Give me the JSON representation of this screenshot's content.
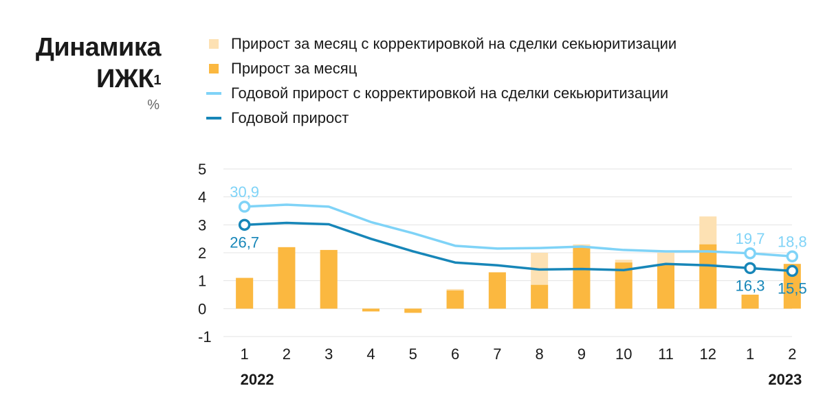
{
  "title_line1": "Динамика",
  "title_line2": "ИЖК",
  "title_sup": "1",
  "unit": "%",
  "legend": [
    {
      "label": "Прирост за месяц с корректировкой на сделки секьюритизации",
      "kind": "box",
      "color": "#fde1b3"
    },
    {
      "label": "Прирост за месяц",
      "kind": "box",
      "color": "#fbb840"
    },
    {
      "label": "Годовой прирост с корректировкой на сделки секьюритизации",
      "kind": "line",
      "color": "#7fd3f7"
    },
    {
      "label": "Годовой прирост",
      "kind": "line",
      "color": "#1786b8"
    }
  ],
  "chart_data": {
    "type": "bar",
    "categories": [
      "1",
      "2",
      "3",
      "4",
      "5",
      "6",
      "7",
      "8",
      "9",
      "10",
      "11",
      "12",
      "1",
      "2"
    ],
    "year_labels": [
      {
        "text": "2022",
        "index": 0
      },
      {
        "text": "2023",
        "index": 13
      }
    ],
    "ylim": [
      -1,
      5
    ],
    "yticks": [
      5,
      4,
      3,
      2,
      1,
      0,
      -1
    ],
    "grid": true,
    "series": [
      {
        "name": "Прирост за месяц с корректировкой на сделки секьюритизации",
        "kind": "bar",
        "color": "#fde1b3",
        "values": [
          1.1,
          2.2,
          2.1,
          -0.1,
          -0.15,
          0.7,
          1.3,
          2.0,
          2.3,
          1.75,
          2.0,
          3.3,
          0.5,
          1.6
        ]
      },
      {
        "name": "Прирост за месяц",
        "kind": "bar",
        "color": "#fbb840",
        "values": [
          1.1,
          2.2,
          2.1,
          -0.1,
          -0.15,
          0.65,
          1.3,
          0.85,
          2.2,
          1.65,
          1.6,
          2.3,
          0.5,
          1.6
        ]
      },
      {
        "name": "Годовой прирост с корректировкой на сделки секьюритизации",
        "kind": "line",
        "color": "#7fd3f7",
        "values": [
          3.65,
          3.72,
          3.65,
          3.1,
          2.7,
          2.25,
          2.15,
          2.17,
          2.22,
          2.1,
          2.05,
          2.05,
          1.98,
          1.87
        ]
      },
      {
        "name": "Годовой прирост",
        "kind": "line",
        "color": "#1786b8",
        "values": [
          3.0,
          3.07,
          3.02,
          2.5,
          2.05,
          1.65,
          1.55,
          1.4,
          1.42,
          1.38,
          1.6,
          1.55,
          1.45,
          1.35
        ]
      }
    ],
    "annotations": [
      {
        "text": "30,9",
        "series": 2,
        "index": 0,
        "position": "above",
        "color": "#7fd3f7"
      },
      {
        "text": "26,7",
        "series": 3,
        "index": 0,
        "position": "below",
        "color": "#1786b8"
      },
      {
        "text": "19,7",
        "series": 2,
        "index": 12,
        "position": "above",
        "color": "#7fd3f7"
      },
      {
        "text": "18,8",
        "series": 2,
        "index": 13,
        "position": "above",
        "color": "#7fd3f7"
      },
      {
        "text": "16,3",
        "series": 3,
        "index": 12,
        "position": "below",
        "color": "#1786b8"
      },
      {
        "text": "15,5",
        "series": 3,
        "index": 13,
        "position": "below",
        "color": "#1786b8"
      }
    ],
    "markers": [
      {
        "series": 2,
        "index": 0
      },
      {
        "series": 3,
        "index": 0
      },
      {
        "series": 2,
        "index": 12
      },
      {
        "series": 2,
        "index": 13
      },
      {
        "series": 3,
        "index": 12
      },
      {
        "series": 3,
        "index": 13
      }
    ]
  }
}
